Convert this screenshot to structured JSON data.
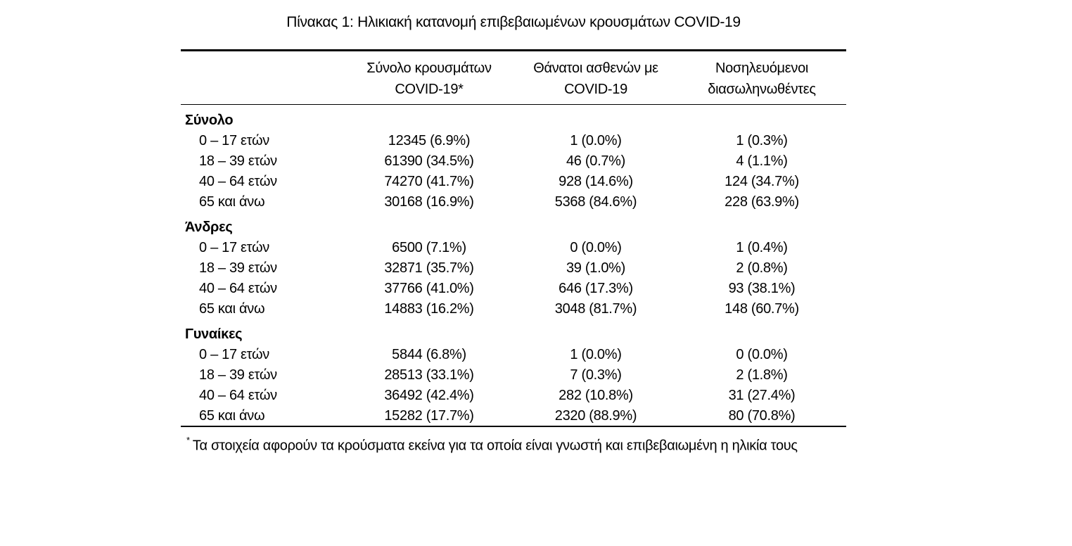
{
  "page": {
    "title": "Πίνακας 1: Ηλικιακή κατανομή επιβεβαιωμένων κρουσμάτων COVID-19"
  },
  "colors": {
    "text": "#000000",
    "background": "#ffffff",
    "rule": "#000000"
  },
  "table": {
    "col_headers": [
      {
        "line1": "Σύνολο κρουσμάτων",
        "line2": "COVID-19*"
      },
      {
        "line1": "Θάνατοι ασθενών με",
        "line2": "COVID-19"
      },
      {
        "line1": "Νοσηλευόμενοι",
        "line2": "διασωληνωθέντες"
      }
    ],
    "sections": [
      {
        "label": "Σύνολο",
        "rows": [
          {
            "age": "0 – 17 ετών",
            "cases": "12345 (6.9%)",
            "deaths": "1 (0.0%)",
            "intubated": "1 (0.3%)"
          },
          {
            "age": "18 – 39 ετών",
            "cases": "61390 (34.5%)",
            "deaths": "46 (0.7%)",
            "intubated": "4 (1.1%)"
          },
          {
            "age": "40 – 64 ετών",
            "cases": "74270 (41.7%)",
            "deaths": "928 (14.6%)",
            "intubated": "124 (34.7%)"
          },
          {
            "age": "65 και άνω",
            "cases": "30168 (16.9%)",
            "deaths": "5368 (84.6%)",
            "intubated": "228 (63.9%)"
          }
        ]
      },
      {
        "label": "Άνδρες",
        "rows": [
          {
            "age": "0 – 17 ετών",
            "cases": "6500 (7.1%)",
            "deaths": "0 (0.0%)",
            "intubated": "1 (0.4%)"
          },
          {
            "age": "18 – 39 ετών",
            "cases": "32871 (35.7%)",
            "deaths": "39 (1.0%)",
            "intubated": "2 (0.8%)"
          },
          {
            "age": "40 – 64 ετών",
            "cases": "37766 (41.0%)",
            "deaths": "646 (17.3%)",
            "intubated": "93 (38.1%)"
          },
          {
            "age": "65 και άνω",
            "cases": "14883 (16.2%)",
            "deaths": "3048 (81.7%)",
            "intubated": "148 (60.7%)"
          }
        ]
      },
      {
        "label": "Γυναίκες",
        "rows": [
          {
            "age": "0 – 17 ετών",
            "cases": "5844 (6.8%)",
            "deaths": "1 (0.0%)",
            "intubated": "0 (0.0%)"
          },
          {
            "age": "18 – 39 ετών",
            "cases": "28513 (33.1%)",
            "deaths": "7 (0.3%)",
            "intubated": "2 (1.8%)"
          },
          {
            "age": "40 – 64 ετών",
            "cases": "36492 (42.4%)",
            "deaths": "282 (10.8%)",
            "intubated": "31 (27.4%)"
          },
          {
            "age": "65 και άνω",
            "cases": "15282 (17.7%)",
            "deaths": "2320 (88.9%)",
            "intubated": "80 (70.8%)"
          }
        ]
      }
    ],
    "footnote": {
      "marker": "*",
      "text": "Τα στοιχεία αφορούν τα κρούσματα εκείνα για τα οποία είναι γνωστή και επιβεβαιωμένη η ηλικία τους"
    }
  }
}
